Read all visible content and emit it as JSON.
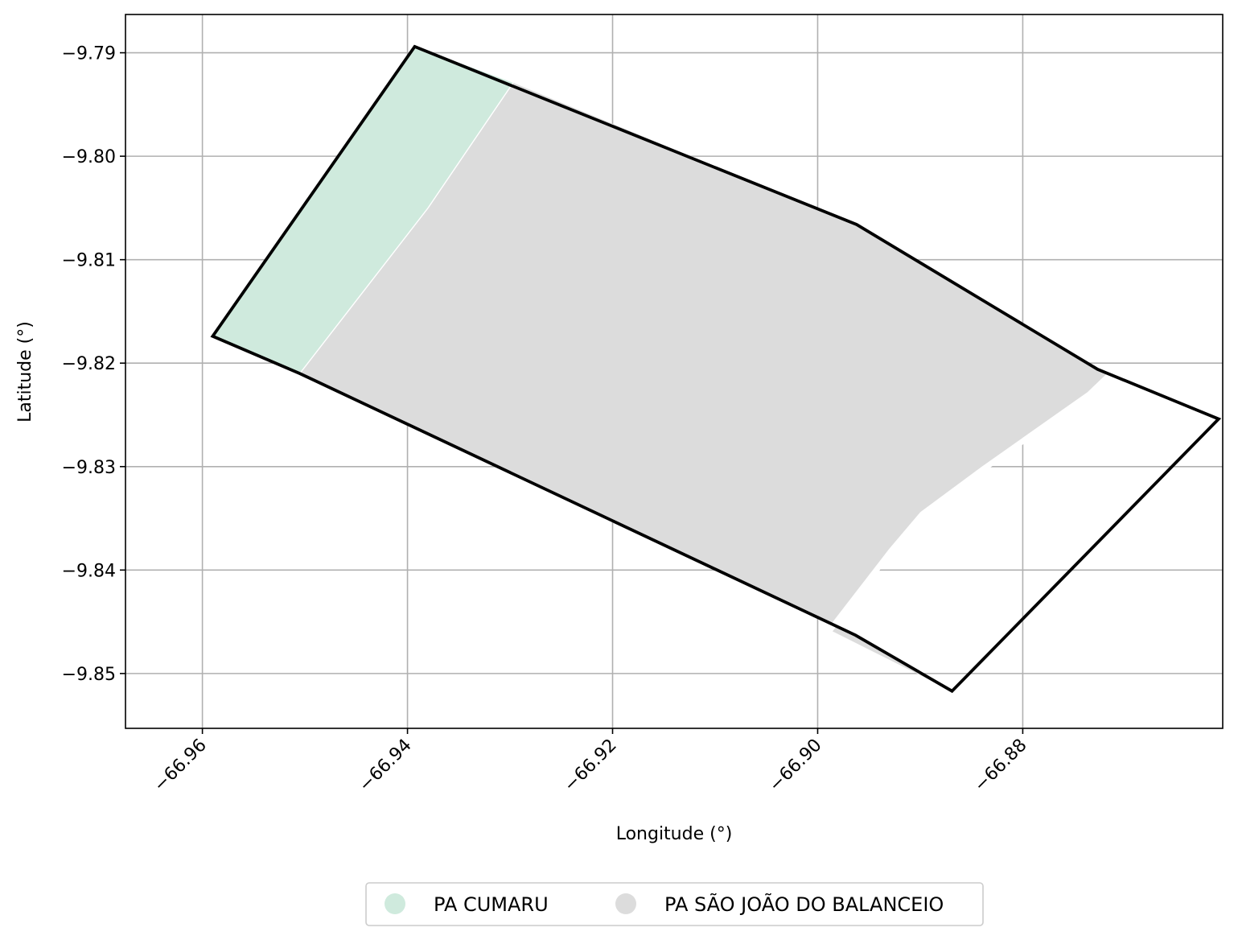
{
  "chart_data": {
    "type": "map",
    "xlabel": "Longitude (°)",
    "ylabel": "Latitude (°)",
    "xlim": [
      -66.9675,
      -66.8605
    ],
    "ylim": [
      -9.8553,
      -9.7863
    ],
    "grid": true,
    "x_ticks": [
      {
        "value": -66.96,
        "label": "−66.96"
      },
      {
        "value": -66.94,
        "label": "−66.94"
      },
      {
        "value": -66.92,
        "label": "−66.92"
      },
      {
        "value": -66.9,
        "label": "−66.90"
      },
      {
        "value": -66.88,
        "label": "−66.88"
      }
    ],
    "y_ticks": [
      {
        "value": -9.79,
        "label": "−9.79"
      },
      {
        "value": -9.8,
        "label": "−9.80"
      },
      {
        "value": -9.81,
        "label": "−9.81"
      },
      {
        "value": -9.82,
        "label": "−9.82"
      },
      {
        "value": -9.83,
        "label": "−9.83"
      },
      {
        "value": -9.84,
        "label": "−9.84"
      },
      {
        "value": -9.85,
        "label": "−9.85"
      }
    ],
    "regions": [
      {
        "name": "PA CUMARU",
        "color": "#cfeadd",
        "polygon": [
          [
            -66.9393,
            -9.7894
          ],
          [
            -66.9297,
            -9.7929
          ],
          [
            -66.938,
            -9.805
          ],
          [
            -66.9505,
            -9.821
          ],
          [
            -66.959,
            -9.8174
          ]
        ]
      },
      {
        "name": "PA SÃO JOÃO DO BALANCEIO",
        "color": "#dcdcdc",
        "polygon": [
          [
            -66.9297,
            -9.7929
          ],
          [
            -66.8962,
            -9.8066
          ],
          [
            -66.8727,
            -9.8206
          ],
          [
            -66.8716,
            -9.8212
          ],
          [
            -66.8735,
            -9.823
          ],
          [
            -66.8838,
            -9.8302
          ],
          [
            -66.8898,
            -9.8346
          ],
          [
            -66.8928,
            -9.8381
          ],
          [
            -66.8988,
            -9.8458
          ],
          [
            -66.8869,
            -9.8517
          ],
          [
            -66.8963,
            -9.8463
          ],
          [
            -66.9505,
            -9.821
          ],
          [
            -66.938,
            -9.805
          ]
        ]
      }
    ],
    "internal_boundaries": [
      {
        "color": "#ffffff",
        "width": "thin",
        "line": [
          [
            -66.9297,
            -9.7929
          ],
          [
            -66.938,
            -9.805
          ],
          [
            -66.9505,
            -9.821
          ]
        ]
      },
      {
        "color": "#ffffff",
        "width": "thick",
        "line": [
          [
            -66.8716,
            -9.8212
          ],
          [
            -66.8735,
            -9.823
          ],
          [
            -66.8838,
            -9.8302
          ],
          [
            -66.8898,
            -9.8346
          ],
          [
            -66.8928,
            -9.8381
          ],
          [
            -66.8988,
            -9.8458
          ]
        ]
      }
    ],
    "outer_boundary": {
      "color": "#000000",
      "polygon": [
        [
          -66.9393,
          -9.7894
        ],
        [
          -66.8962,
          -9.8066
        ],
        [
          -66.8727,
          -9.8206
        ],
        [
          -66.8609,
          -9.8254
        ],
        [
          -66.8869,
          -9.8517
        ],
        [
          -66.8963,
          -9.8463
        ],
        [
          -66.9505,
          -9.821
        ],
        [
          -66.959,
          -9.8174
        ]
      ]
    },
    "legend": {
      "placement": "bottom-center",
      "entries": [
        {
          "label": "PA CUMARU",
          "color": "#cfeadd"
        },
        {
          "label": "PA SÃO JOÃO DO BALANCEIO",
          "color": "#dcdcdc"
        }
      ]
    }
  }
}
